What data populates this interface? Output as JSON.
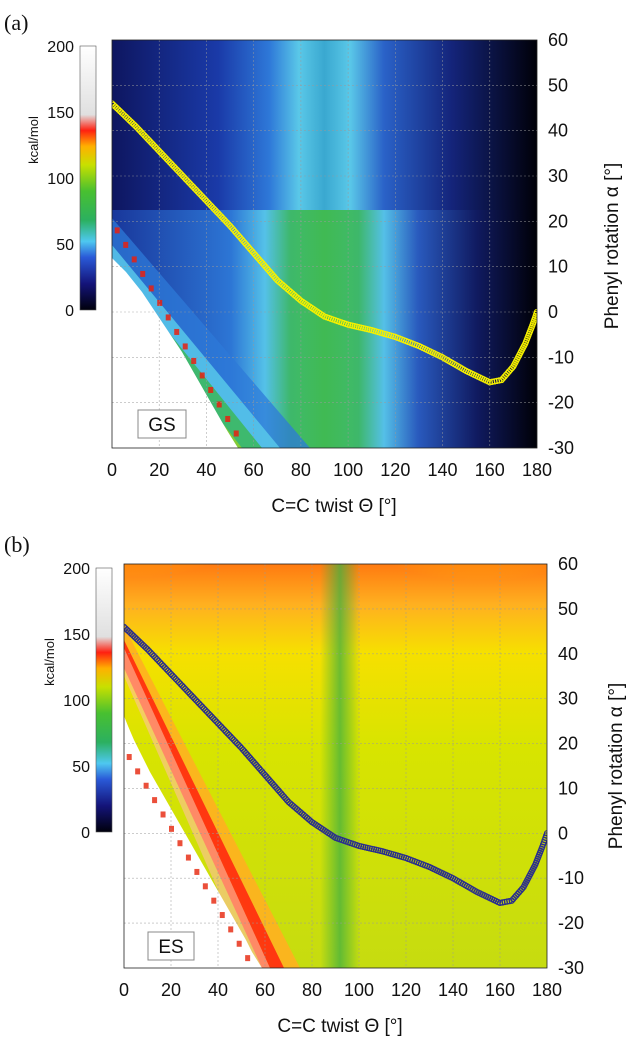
{
  "chart_data": [
    {
      "panel": "(a)",
      "type": "heatmap",
      "tag": "GS",
      "tag_color": "#2c3a8c",
      "xlabel": "C=C twist Θ  [°]",
      "ylabel": "Phenyl rotation α  [°]",
      "xlim": [
        0,
        180
      ],
      "ylim": [
        -30,
        60
      ],
      "xticks": [
        0,
        20,
        40,
        60,
        80,
        100,
        120,
        140,
        160,
        180
      ],
      "yticks": [
        -30,
        -20,
        -10,
        0,
        10,
        20,
        30,
        40,
        50,
        60
      ],
      "colorbar": {
        "unit": "kcal/mol",
        "ticks": [
          0,
          50,
          100,
          150,
          200
        ],
        "colors": [
          "#000010",
          "#1a1a78",
          "#2a5cd8",
          "#4ec8f0",
          "#3cbf3c",
          "#c8e000",
          "#ffb000",
          "#ff3000",
          "#ffffff"
        ]
      },
      "path": {
        "color": "#f5f000",
        "points": [
          [
            0,
            46
          ],
          [
            10,
            41
          ],
          [
            20,
            35.5
          ],
          [
            30,
            30
          ],
          [
            40,
            24.5
          ],
          [
            50,
            19
          ],
          [
            60,
            13
          ],
          [
            70,
            7
          ],
          [
            80,
            2.5
          ],
          [
            90,
            -1
          ],
          [
            100,
            -2.8
          ],
          [
            110,
            -4
          ],
          [
            120,
            -5.5
          ],
          [
            130,
            -7.5
          ],
          [
            140,
            -10
          ],
          [
            150,
            -13
          ],
          [
            160,
            -15.5
          ],
          [
            165,
            -15
          ],
          [
            170,
            -12
          ],
          [
            175,
            -7
          ],
          [
            178,
            -3
          ],
          [
            180,
            0
          ]
        ]
      }
    },
    {
      "panel": "(b)",
      "type": "heatmap",
      "tag": "ES",
      "tag_color": "#c8102e",
      "xlabel": "C=C twist Θ  [°]",
      "ylabel": "Phenyl rotation α  [°]",
      "xlim": [
        0,
        180
      ],
      "ylim": [
        -30,
        60
      ],
      "xticks": [
        0,
        20,
        40,
        60,
        80,
        100,
        120,
        140,
        160,
        180
      ],
      "yticks": [
        -30,
        -20,
        -10,
        0,
        10,
        20,
        30,
        40,
        50,
        60
      ],
      "colorbar": {
        "unit": "kcal/mol",
        "ticks": [
          0,
          50,
          100,
          150,
          200
        ],
        "colors": [
          "#000010",
          "#1a1a78",
          "#2a5cd8",
          "#4ec8f0",
          "#3cbf3c",
          "#c8e000",
          "#ffb000",
          "#ff3000",
          "#ffffff"
        ]
      },
      "path": {
        "color": "#2a2e8c",
        "points": [
          [
            0,
            46
          ],
          [
            10,
            41
          ],
          [
            20,
            35.5
          ],
          [
            30,
            30
          ],
          [
            40,
            24.5
          ],
          [
            50,
            19
          ],
          [
            60,
            13
          ],
          [
            70,
            7
          ],
          [
            80,
            2.5
          ],
          [
            90,
            -1
          ],
          [
            100,
            -2.8
          ],
          [
            110,
            -4
          ],
          [
            120,
            -5.5
          ],
          [
            130,
            -7.5
          ],
          [
            140,
            -10
          ],
          [
            150,
            -13
          ],
          [
            160,
            -15.5
          ],
          [
            165,
            -15
          ],
          [
            170,
            -12
          ],
          [
            175,
            -7
          ],
          [
            178,
            -3
          ],
          [
            180,
            0
          ]
        ]
      }
    }
  ]
}
